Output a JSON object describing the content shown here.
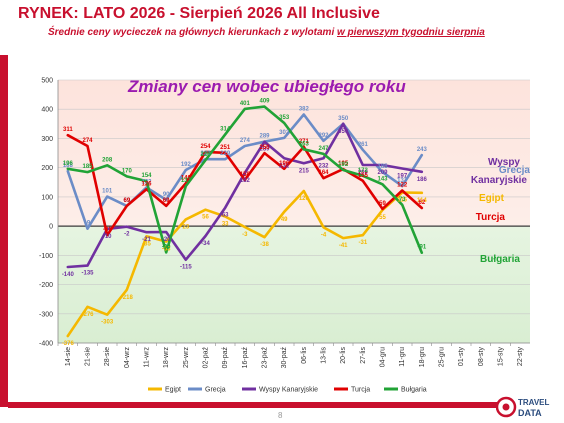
{
  "header": {
    "title": "RYNEK: LATO 2026 - Sierpień 2026 All Inclusive",
    "subtitle_main": "Średnie ceny wycieczek na głównych kierunkach  z wylotami ",
    "subtitle_underlined": "w pierwszym tygodniu sierpnia"
  },
  "footer": {
    "page_number": "8",
    "logo_text_1": "TRAVEL",
    "logo_text_2": "DATA"
  },
  "colors": {
    "brand_red": "#c8102e"
  },
  "chart_data": {
    "type": "line",
    "title": "Zmiany cen wobec ubiegłego roku",
    "ylim": [
      -400,
      500
    ],
    "yticks": [
      -400,
      -300,
      -200,
      -100,
      0,
      100,
      200,
      300,
      400,
      500
    ],
    "categories": [
      "14-sie",
      "21-sie",
      "28-sie",
      "04-wrz",
      "11-wrz",
      "18-wrz",
      "25-wrz",
      "02-paź",
      "09-paź",
      "16-paź",
      "23-paź",
      "30-paź",
      "06-lis",
      "13-lis",
      "20-lis",
      "27-lis",
      "04-gru",
      "11-gru",
      "18-gru",
      "25-gru",
      "01-sty",
      "08-sty",
      "15-sty",
      "22-sty"
    ],
    "series": [
      {
        "name": "Egipt",
        "color": "#f5b800",
        "side_label": "Egipt",
        "values": [
          -376,
          -276,
          -303,
          -218,
          -35,
          -53,
          23,
          56,
          33,
          -3,
          -38,
          49,
          120,
          -4,
          -41,
          -31,
          55,
          115,
          114,
          null,
          null,
          null,
          null,
          null
        ],
        "labels": [
          "-376",
          "-276",
          "-303",
          "-218",
          "-35",
          "-53",
          "23",
          "56",
          "33",
          "-3",
          "-38",
          "49",
          "120",
          "-4",
          "-41",
          "-31",
          "55",
          "115",
          "114",
          "",
          "",
          "",
          "",
          ""
        ]
      },
      {
        "name": "Grecja",
        "color": "#6b8cc7",
        "side_label": "Grecja",
        "values": [
          188,
          -9,
          101,
          69,
          132,
          90,
          192,
          229,
          229,
          274,
          289,
          302,
          382,
          292,
          350,
          261,
          185,
          137,
          243,
          null,
          null,
          null,
          null,
          null
        ],
        "labels": [
          "188",
          "-9",
          "101",
          "69",
          "132",
          "90",
          "192",
          "229",
          "229",
          "274",
          "289",
          "302",
          "382",
          "292",
          "350",
          "261",
          "185",
          "137",
          "243",
          "",
          "",
          "",
          "",
          ""
        ]
      },
      {
        "name": "Wyspy Kanaryjskie",
        "color": "#7030a0",
        "side_label": "Wyspy Kanaryjskie",
        "values": [
          -140,
          -135,
          -10,
          -2,
          -21,
          -20,
          -115,
          -34,
          63,
          182,
          289,
          232,
          215,
          232,
          350,
          209,
          209,
          197,
          186,
          null,
          null,
          null,
          null,
          null
        ],
        "labels": [
          "-140",
          "-135",
          "-10",
          "-2",
          "-21",
          "-20",
          "-115",
          "-34",
          "63",
          "182",
          "289",
          "232",
          "215",
          "232",
          "350",
          "209",
          "209",
          "197",
          "186",
          "",
          "",
          "",
          "",
          ""
        ]
      },
      {
        "name": "Turcja",
        "color": "#e00000",
        "side_label": "Turcja",
        "values": [
          311,
          274,
          -31,
          69,
          126,
          69,
          146,
          254,
          251,
          158,
          250,
          196,
          271,
          164,
          195,
          155,
          59,
          122,
          62,
          null,
          null,
          null,
          null,
          null
        ],
        "labels": [
          "311",
          "274",
          "-31",
          "69",
          "126",
          "69",
          "146",
          "254",
          "251",
          "158",
          "250",
          "196",
          "271",
          "164",
          "195",
          "155",
          "59",
          "122",
          "62",
          "",
          "",
          "",
          "",
          ""
        ]
      },
      {
        "name": "Bułgaria",
        "color": "#21a336",
        "side_label": "Bułgaria",
        "values": [
          196,
          185,
          208,
          170,
          154,
          -90,
          137,
          226,
          314,
          401,
          409,
          353,
          263,
          247,
          192,
          172,
          143,
          73,
          -91,
          null,
          null,
          null,
          null,
          null
        ],
        "labels": [
          "196",
          "185",
          "208",
          "170",
          "154",
          "-90",
          "137",
          "226",
          "314",
          "401",
          "409",
          "353",
          "263",
          "247",
          "192",
          "172",
          "143",
          "73",
          "-91",
          "",
          "",
          "",
          "",
          ""
        ]
      }
    ]
  }
}
